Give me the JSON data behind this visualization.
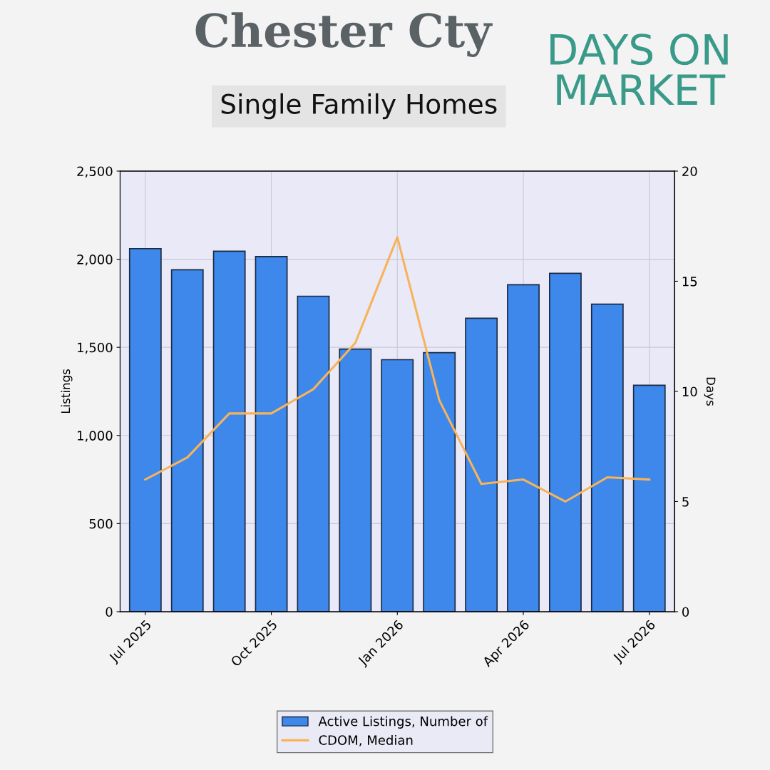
{
  "chart_data": {
    "type": "bar",
    "title": "Chester Cty",
    "subtitle": "Single Family Homes",
    "annotations": [
      "DAYS ON\nMARKET"
    ],
    "categories": [
      "Jul 2025",
      null,
      null,
      "Oct 2025",
      null,
      null,
      "Jan 2026",
      null,
      null,
      "Apr 2026",
      null,
      null,
      "Jul 2026"
    ],
    "series": [
      {
        "name": "Active Listings, Number of",
        "color": "#3d88ea",
        "values": [
          2060,
          1940,
          2045,
          2015,
          1790,
          1490,
          1430,
          1470,
          1665,
          1855,
          1920,
          1745,
          1285
        ]
      },
      {
        "name": "CDOM, Median",
        "type": "line",
        "axis": "y2",
        "color": "#f8b35a",
        "values": [
          6.0,
          7.0,
          9.0,
          9.0,
          10.1,
          12.2,
          17.0,
          9.6,
          5.8,
          6.0,
          5.0,
          6.1,
          6.0
        ]
      }
    ],
    "ylabel": "Listings",
    "y2label": "Days",
    "ylim": [
      0,
      2500
    ],
    "yticks": [
      0,
      500,
      {
        "value": 1000,
        "label": "1,000"
      },
      {
        "value": 1500,
        "label": "1,500"
      },
      {
        "value": 2000,
        "label": "2,000"
      },
      {
        "value": 2500,
        "label": "2,500"
      }
    ],
    "y2lim": [
      0,
      20
    ],
    "y2ticks": [
      0,
      5,
      10,
      15,
      20
    ],
    "grid": true,
    "legend": "bottom"
  }
}
